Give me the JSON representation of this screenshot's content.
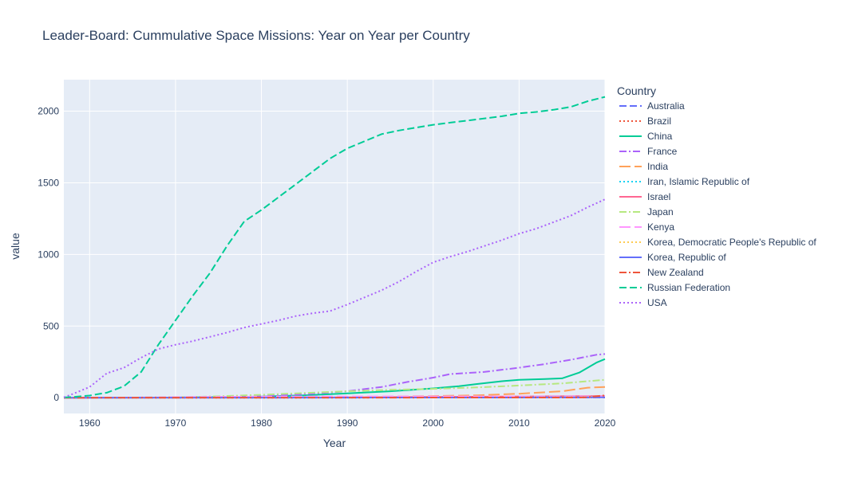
{
  "chart_data": {
    "type": "line",
    "title": "Leader-Board: Cummulative Space Missions: Year on Year per Country",
    "xlabel": "Year",
    "ylabel": "value",
    "xlim": [
      1957,
      2020
    ],
    "ylim": [
      -110,
      2220
    ],
    "x_ticks": [
      1960,
      1970,
      1980,
      1990,
      2000,
      2010,
      2020
    ],
    "y_ticks": [
      0,
      500,
      1000,
      1500,
      2000
    ],
    "grid": true,
    "legend_title": "Country",
    "legend_position": "right",
    "series": [
      {
        "name": "Australia",
        "color": "#636efa",
        "dash": "dash",
        "points": [
          [
            1957,
            0
          ],
          [
            1967,
            1
          ],
          [
            1971,
            2
          ],
          [
            2020,
            2
          ]
        ]
      },
      {
        "name": "Brazil",
        "color": "#EF553B",
        "dash": "dot",
        "points": [
          [
            1957,
            0
          ],
          [
            1997,
            1
          ],
          [
            1999,
            2
          ],
          [
            2003,
            3
          ],
          [
            2020,
            3
          ]
        ]
      },
      {
        "name": "China",
        "color": "#00cc96",
        "dash": "solid",
        "points": [
          [
            1957,
            0
          ],
          [
            1970,
            1
          ],
          [
            1975,
            4
          ],
          [
            1980,
            8
          ],
          [
            1985,
            16
          ],
          [
            1990,
            30
          ],
          [
            1995,
            45
          ],
          [
            2000,
            65
          ],
          [
            2003,
            80
          ],
          [
            2005,
            95
          ],
          [
            2008,
            115
          ],
          [
            2010,
            125
          ],
          [
            2013,
            130
          ],
          [
            2015,
            135
          ],
          [
            2017,
            175
          ],
          [
            2019,
            245
          ],
          [
            2020,
            270
          ]
        ]
      },
      {
        "name": "France",
        "color": "#ab63fa",
        "dash": "dashdot",
        "points": [
          [
            1957,
            0
          ],
          [
            1965,
            1
          ],
          [
            1970,
            3
          ],
          [
            1975,
            6
          ],
          [
            1980,
            12
          ],
          [
            1985,
            25
          ],
          [
            1990,
            45
          ],
          [
            1994,
            75
          ],
          [
            1997,
            110
          ],
          [
            2000,
            140
          ],
          [
            2002,
            165
          ],
          [
            2006,
            180
          ],
          [
            2010,
            210
          ],
          [
            2013,
            235
          ],
          [
            2016,
            265
          ],
          [
            2019,
            300
          ],
          [
            2020,
            305
          ]
        ]
      },
      {
        "name": "India",
        "color": "#FFA15A",
        "dash": "longdash",
        "points": [
          [
            1957,
            0
          ],
          [
            1979,
            1
          ],
          [
            1985,
            3
          ],
          [
            1990,
            5
          ],
          [
            1995,
            8
          ],
          [
            2000,
            12
          ],
          [
            2005,
            17
          ],
          [
            2010,
            28
          ],
          [
            2015,
            45
          ],
          [
            2018,
            70
          ],
          [
            2020,
            75
          ]
        ]
      },
      {
        "name": "Iran, Islamic Republic of",
        "color": "#19d3f3",
        "dash": "dot",
        "points": [
          [
            1957,
            0
          ],
          [
            2009,
            1
          ],
          [
            2012,
            4
          ],
          [
            2015,
            7
          ],
          [
            2020,
            12
          ]
        ]
      },
      {
        "name": "Israel",
        "color": "#FF6692",
        "dash": "solid",
        "points": [
          [
            1957,
            0
          ],
          [
            1988,
            1
          ],
          [
            1995,
            4
          ],
          [
            2004,
            7
          ],
          [
            2014,
            10
          ],
          [
            2020,
            12
          ]
        ]
      },
      {
        "name": "Japan",
        "color": "#B6E880",
        "dash": "dashdot",
        "points": [
          [
            1957,
            0
          ],
          [
            1966,
            1
          ],
          [
            1970,
            3
          ],
          [
            1975,
            10
          ],
          [
            1980,
            20
          ],
          [
            1985,
            33
          ],
          [
            1990,
            45
          ],
          [
            1995,
            55
          ],
          [
            2000,
            62
          ],
          [
            2005,
            72
          ],
          [
            2010,
            85
          ],
          [
            2015,
            100
          ],
          [
            2020,
            125
          ]
        ]
      },
      {
        "name": "Kenya",
        "color": "#FF97FF",
        "dash": "longdash",
        "points": [
          [
            1957,
            0
          ],
          [
            1967,
            2
          ],
          [
            1974,
            6
          ],
          [
            1988,
            9
          ],
          [
            2020,
            9
          ]
        ]
      },
      {
        "name": "Korea, Democratic People's Republic of",
        "color": "#FECB52",
        "dash": "dot",
        "points": [
          [
            1957,
            0
          ],
          [
            1998,
            1
          ],
          [
            2009,
            2
          ],
          [
            2012,
            4
          ],
          [
            2016,
            5
          ],
          [
            2020,
            5
          ]
        ]
      },
      {
        "name": "Korea, Republic of",
        "color": "#636efa",
        "dash": "solid",
        "points": [
          [
            1957,
            0
          ],
          [
            2009,
            1
          ],
          [
            2010,
            2
          ],
          [
            2013,
            3
          ],
          [
            2020,
            3
          ]
        ]
      },
      {
        "name": "New Zealand",
        "color": "#EF553B",
        "dash": "dashdot",
        "points": [
          [
            1957,
            0
          ],
          [
            2017,
            1
          ],
          [
            2018,
            4
          ],
          [
            2019,
            10
          ],
          [
            2020,
            16
          ]
        ]
      },
      {
        "name": "Russian Federation",
        "color": "#00cc96",
        "dash": "dash",
        "points": [
          [
            1957,
            2
          ],
          [
            1958,
            5
          ],
          [
            1960,
            15
          ],
          [
            1962,
            35
          ],
          [
            1964,
            80
          ],
          [
            1966,
            180
          ],
          [
            1968,
            370
          ],
          [
            1970,
            540
          ],
          [
            1972,
            710
          ],
          [
            1974,
            870
          ],
          [
            1976,
            1060
          ],
          [
            1978,
            1230
          ],
          [
            1980,
            1310
          ],
          [
            1982,
            1400
          ],
          [
            1984,
            1490
          ],
          [
            1986,
            1580
          ],
          [
            1988,
            1670
          ],
          [
            1990,
            1740
          ],
          [
            1992,
            1790
          ],
          [
            1994,
            1840
          ],
          [
            1996,
            1865
          ],
          [
            1998,
            1885
          ],
          [
            2000,
            1905
          ],
          [
            2002,
            1920
          ],
          [
            2004,
            1935
          ],
          [
            2006,
            1950
          ],
          [
            2008,
            1965
          ],
          [
            2010,
            1985
          ],
          [
            2012,
            1995
          ],
          [
            2014,
            2010
          ],
          [
            2016,
            2030
          ],
          [
            2018,
            2070
          ],
          [
            2020,
            2100
          ]
        ]
      },
      {
        "name": "USA",
        "color": "#ab63fa",
        "dash": "dot",
        "points": [
          [
            1957,
            3
          ],
          [
            1958,
            25
          ],
          [
            1960,
            75
          ],
          [
            1962,
            170
          ],
          [
            1964,
            210
          ],
          [
            1966,
            280
          ],
          [
            1968,
            340
          ],
          [
            1970,
            370
          ],
          [
            1972,
            395
          ],
          [
            1974,
            425
          ],
          [
            1976,
            455
          ],
          [
            1978,
            490
          ],
          [
            1980,
            515
          ],
          [
            1982,
            540
          ],
          [
            1984,
            570
          ],
          [
            1986,
            590
          ],
          [
            1988,
            605
          ],
          [
            1990,
            650
          ],
          [
            1992,
            700
          ],
          [
            1994,
            750
          ],
          [
            1996,
            810
          ],
          [
            1998,
            880
          ],
          [
            2000,
            945
          ],
          [
            2002,
            985
          ],
          [
            2004,
            1020
          ],
          [
            2006,
            1060
          ],
          [
            2008,
            1100
          ],
          [
            2010,
            1145
          ],
          [
            2012,
            1180
          ],
          [
            2014,
            1225
          ],
          [
            2016,
            1270
          ],
          [
            2018,
            1330
          ],
          [
            2020,
            1385
          ]
        ]
      }
    ]
  }
}
